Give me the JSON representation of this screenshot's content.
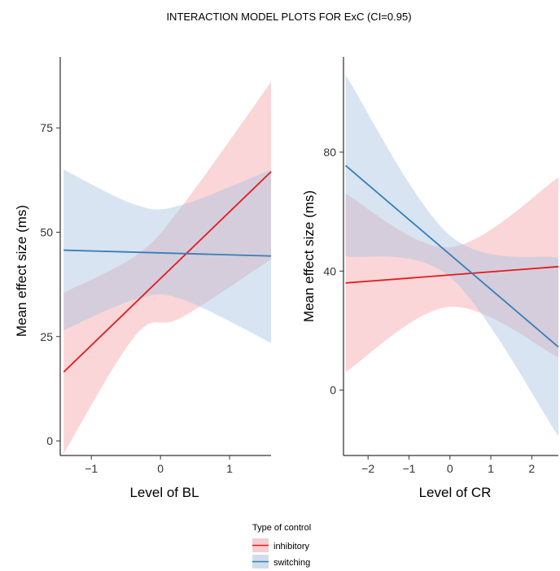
{
  "title": "INTERACTION MODEL PLOTS FOR ExC (CI=0.95)",
  "colors": {
    "inhibitory_line": "#e41a1c",
    "switching_line": "#377eb8",
    "inhibitory_band": "#f4a3a8",
    "switching_band": "#a9c3e0"
  },
  "legend": {
    "title": "Type of control",
    "entries": [
      {
        "label": "inhibitory",
        "color": "#e41a1c",
        "fill": "#f4a3a8"
      },
      {
        "label": "switching",
        "color": "#377eb8",
        "fill": "#a9c3e0"
      }
    ],
    "placement": "bottom-center"
  },
  "chart_data": [
    {
      "type": "line",
      "xlabel": "Level of BL",
      "ylabel": "Mean effect size (ms)",
      "xlim": [
        -1.45,
        1.6
      ],
      "ylim": [
        -3.5,
        92
      ],
      "xticks": [
        -1,
        0,
        1
      ],
      "yticks": [
        0,
        25,
        50,
        75
      ],
      "xtick_labels": [
        "−1",
        "0",
        "1"
      ],
      "ytick_labels": [
        "0",
        "25",
        "50",
        "75"
      ],
      "grid": false,
      "series": [
        {
          "name": "inhibitory",
          "x": [
            -1.4,
            -0.35,
            0.3,
            1.6
          ],
          "y": [
            16.5,
            36.0,
            43.5,
            64.5
          ],
          "lower": [
            -3.0,
            25.5,
            29.5,
            43.5
          ],
          "upper": [
            35.5,
            44.5,
            56.0,
            86.0
          ]
        },
        {
          "name": "switching",
          "x": [
            -1.4,
            -0.35,
            0.3,
            1.6
          ],
          "y": [
            45.7,
            45.2,
            44.9,
            44.3
          ],
          "lower": [
            26.5,
            34.0,
            34.0,
            23.5
          ],
          "upper": [
            65.0,
            56.5,
            56.5,
            65.0
          ]
        }
      ]
    },
    {
      "type": "line",
      "xlabel": "Level of CR",
      "ylabel": "Mean effect size (ms)",
      "xlim": [
        -2.6,
        2.65
      ],
      "ylim": [
        -22,
        112
      ],
      "xticks": [
        -2,
        -1,
        0,
        1,
        2
      ],
      "yticks": [
        0,
        40,
        80
      ],
      "xtick_labels": [
        "−2",
        "−1",
        "0",
        "1",
        "2"
      ],
      "ytick_labels": [
        "0",
        "40",
        "80"
      ],
      "grid": false,
      "series": [
        {
          "name": "inhibitory",
          "x": [
            -2.55,
            0.0,
            2.65
          ],
          "y": [
            36.0,
            38.8,
            41.5
          ],
          "lower": [
            6.0,
            28.0,
            11.0
          ],
          "upper": [
            66.0,
            48.0,
            71.5
          ]
        },
        {
          "name": "switching",
          "x": [
            -2.55,
            0.0,
            2.65
          ],
          "y": [
            75.5,
            45.5,
            14.5
          ],
          "lower": [
            45.0,
            38.0,
            -15.5
          ],
          "upper": [
            106.0,
            52.0,
            44.5
          ]
        }
      ]
    }
  ]
}
